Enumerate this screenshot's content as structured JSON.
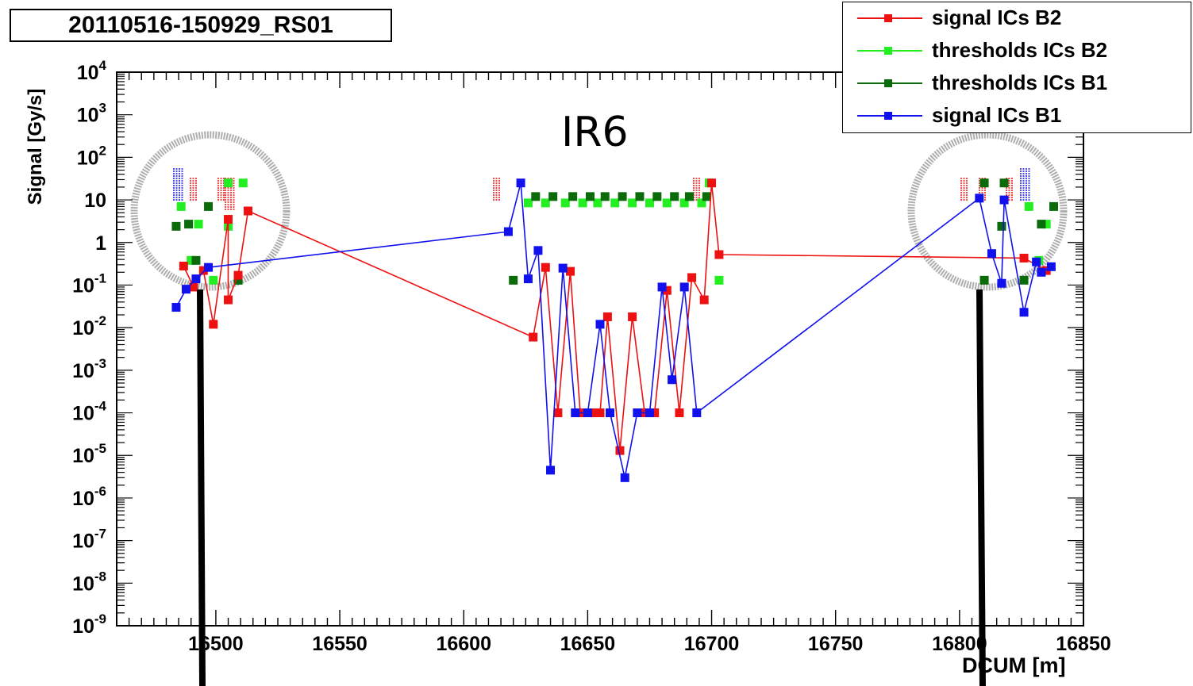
{
  "page_title": "20110516-150929_RS01",
  "colors": {
    "signal_b2": "#ee1111",
    "thresholds_b2": "#22ee22",
    "thresholds_b1": "#0b6b0b",
    "signal_b1": "#1111ee",
    "circle": "#aaaaaa"
  },
  "chart_data": {
    "type": "scatter",
    "title": "",
    "annotation": "IR6",
    "xlabel": "DCUM [m]",
    "ylabel": "Signal [Gy/s]",
    "xlim": [
      16460,
      16850
    ],
    "ylim": [
      1e-09,
      10000
    ],
    "yscale": "log",
    "grid": false,
    "legend_position": "top-right",
    "x_ticks": [
      16500,
      16550,
      16600,
      16650,
      16700,
      16750,
      16800,
      16850
    ],
    "y_ticks": [
      {
        "base": "10",
        "exp": "-9",
        "value": 1e-09
      },
      {
        "base": "10",
        "exp": "-8",
        "value": 1e-08
      },
      {
        "base": "10",
        "exp": "-7",
        "value": 1e-07
      },
      {
        "base": "10",
        "exp": "-6",
        "value": 1e-06
      },
      {
        "base": "10",
        "exp": "-5",
        "value": 1e-05
      },
      {
        "base": "10",
        "exp": "-4",
        "value": 0.0001
      },
      {
        "base": "10",
        "exp": "-3",
        "value": 0.001
      },
      {
        "base": "10",
        "exp": "-2",
        "value": 0.01
      },
      {
        "base": "10",
        "exp": "-1",
        "value": 0.1
      },
      {
        "base": "1",
        "exp": "",
        "value": 1
      },
      {
        "base": "10",
        "exp": "",
        "value": 10
      },
      {
        "base": "10",
        "exp": "2",
        "value": 100
      },
      {
        "base": "10",
        "exp": "3",
        "value": 1000
      },
      {
        "base": "10",
        "exp": "4",
        "value": 10000
      }
    ],
    "series": [
      {
        "name": "signal ICs B2",
        "color": "#ee1111",
        "line": true,
        "points": [
          [
            16487,
            0.28
          ],
          [
            16491,
            0.09
          ],
          [
            16495,
            0.22
          ],
          [
            16499,
            0.012
          ],
          [
            16505,
            3.5
          ],
          [
            16505,
            0.045
          ],
          [
            16509,
            0.17
          ],
          [
            16513,
            5.5
          ],
          [
            16628,
            0.006
          ],
          [
            16633,
            0.26
          ],
          [
            16638,
            0.0001
          ],
          [
            16643,
            0.21
          ],
          [
            16647,
            0.0001
          ],
          [
            16652,
            0.0001
          ],
          [
            16655,
            0.0001
          ],
          [
            16658,
            0.018
          ],
          [
            16663,
            1.3e-05
          ],
          [
            16668,
            0.018
          ],
          [
            16673,
            0.0001
          ],
          [
            16677,
            0.0001
          ],
          [
            16682,
            0.075
          ],
          [
            16687,
            0.0001
          ],
          [
            16692,
            0.15
          ],
          [
            16697,
            0.045
          ],
          [
            16700,
            25
          ],
          [
            16703,
            0.52
          ],
          [
            16826,
            0.43
          ],
          [
            16835,
            0.22
          ]
        ]
      },
      {
        "name": "thresholds ICs B2",
        "color": "#22ee22",
        "line": false,
        "points": [
          [
            16486,
            7
          ],
          [
            16490,
            0.38
          ],
          [
            16493,
            2.7
          ],
          [
            16499,
            0.13
          ],
          [
            16505,
            25
          ],
          [
            16505,
            2.4
          ],
          [
            16509,
            0.13
          ],
          [
            16511,
            25
          ],
          [
            16626,
            8.5
          ],
          [
            16633,
            8.5
          ],
          [
            16641,
            8.5
          ],
          [
            16648,
            8.5
          ],
          [
            16654,
            8.5
          ],
          [
            16661,
            8.5
          ],
          [
            16668,
            8.5
          ],
          [
            16675,
            8.5
          ],
          [
            16682,
            8.5
          ],
          [
            16689,
            8.5
          ],
          [
            16696,
            8.5
          ],
          [
            16699,
            25
          ],
          [
            16703,
            0.13
          ],
          [
            16828,
            7
          ],
          [
            16832,
            0.38
          ],
          [
            16835,
            2.7
          ]
        ]
      },
      {
        "name": "thresholds ICs B1",
        "color": "#0b6b0b",
        "line": false,
        "points": [
          [
            16484,
            2.4
          ],
          [
            16489,
            2.7
          ],
          [
            16492,
            0.38
          ],
          [
            16497,
            7
          ],
          [
            16509,
            0.13
          ],
          [
            16620,
            0.13
          ],
          [
            16629,
            12
          ],
          [
            16636,
            12
          ],
          [
            16644,
            12
          ],
          [
            16651,
            12
          ],
          [
            16657,
            12
          ],
          [
            16664,
            12
          ],
          [
            16671,
            12
          ],
          [
            16678,
            12
          ],
          [
            16685,
            12
          ],
          [
            16691,
            12
          ],
          [
            16698,
            12
          ],
          [
            16810,
            0.13
          ],
          [
            16810,
            25
          ],
          [
            16817,
            2.4
          ],
          [
            16818,
            25
          ],
          [
            16826,
            0.13
          ],
          [
            16833,
            2.7
          ],
          [
            16838,
            7
          ]
        ]
      },
      {
        "name": "signal ICs B1",
        "color": "#1111ee",
        "line": true,
        "points": [
          [
            16484,
            0.03
          ],
          [
            16488,
            0.08
          ],
          [
            16492,
            0.14
          ],
          [
            16497,
            0.26
          ],
          [
            16618,
            1.8
          ],
          [
            16623,
            25
          ],
          [
            16626,
            0.14
          ],
          [
            16630,
            0.65
          ],
          [
            16635,
            4.5e-06
          ],
          [
            16640,
            0.25
          ],
          [
            16645,
            0.0001
          ],
          [
            16650,
            0.0001
          ],
          [
            16655,
            0.012
          ],
          [
            16659,
            0.0001
          ],
          [
            16665,
            3e-06
          ],
          [
            16670,
            0.0001
          ],
          [
            16675,
            0.0001
          ],
          [
            16680,
            0.09
          ],
          [
            16684,
            0.0006
          ],
          [
            16689,
            0.09
          ],
          [
            16694,
            0.0001
          ],
          [
            16808,
            11
          ],
          [
            16813,
            0.55
          ],
          [
            16817,
            0.11
          ],
          [
            16818,
            10
          ],
          [
            16826,
            0.023
          ],
          [
            16831,
            0.35
          ],
          [
            16833,
            0.2
          ],
          [
            16837,
            0.27
          ]
        ]
      }
    ]
  }
}
